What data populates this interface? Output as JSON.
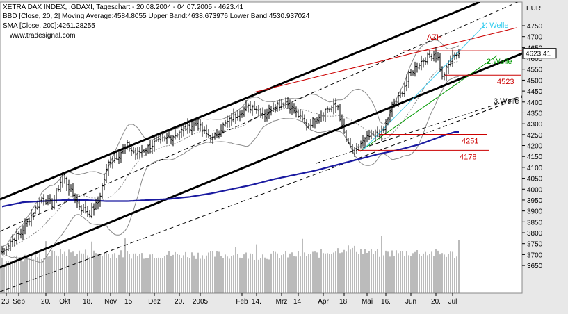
{
  "chart_data": {
    "type": "line",
    "legend": [
      {
        "text": "XETRA DAX INDEX, .GDAXI, Tageschart - 20.08.2004 - 04.07.2005 - 4623.41",
        "color": "#000000"
      },
      {
        "text": "BBD [Close, 20, 2] Moving Average:4584.8055 Upper Band:4638.673976 Lower Band:4530.937024",
        "color": "#555555"
      },
      {
        "text": "SMA [Close, 200]:4261.28255",
        "color": "#1a1aa0"
      }
    ],
    "watermark": "www.tradesignal.com",
    "currency": "EUR",
    "last_price": "4623.41",
    "ylim": [
      3600,
      4850
    ],
    "yticks": [
      3650,
      3700,
      3750,
      3800,
      3850,
      3900,
      3950,
      4000,
      4050,
      4100,
      4150,
      4200,
      4250,
      4300,
      4350,
      4400,
      4450,
      4500,
      4550,
      4600,
      4650,
      4700,
      4750
    ],
    "xticks": [
      {
        "label": "23.",
        "i": 2
      },
      {
        "label": "Sep",
        "i": 8
      },
      {
        "label": "20.",
        "i": 21
      },
      {
        "label": "Okt",
        "i": 30
      },
      {
        "label": "18.",
        "i": 41
      },
      {
        "label": "Nov",
        "i": 52
      },
      {
        "label": "15.",
        "i": 61
      },
      {
        "label": "Dez",
        "i": 73
      },
      {
        "label": "20.",
        "i": 85
      },
      {
        "label": "2005",
        "i": 95
      },
      {
        "label": "Feb",
        "i": 115
      },
      {
        "label": "14.",
        "i": 122
      },
      {
        "label": "Mrz",
        "i": 134
      },
      {
        "label": "14.",
        "i": 142
      },
      {
        "label": "Apr",
        "i": 154
      },
      {
        "label": "18.",
        "i": 164
      },
      {
        "label": "Mai",
        "i": 175
      },
      {
        "label": "16.",
        "i": 184
      },
      {
        "label": "Jun",
        "i": 196
      },
      {
        "label": "20.",
        "i": 208
      },
      {
        "label": "Jul",
        "i": 216
      }
    ],
    "n_bars": 220,
    "close_keypoints": [
      [
        0,
        3710
      ],
      [
        4,
        3760
      ],
      [
        9,
        3800
      ],
      [
        14,
        3880
      ],
      [
        19,
        3960
      ],
      [
        24,
        3930
      ],
      [
        29,
        4060
      ],
      [
        33,
        3990
      ],
      [
        38,
        3910
      ],
      [
        42,
        3890
      ],
      [
        46,
        3940
      ],
      [
        51,
        4120
      ],
      [
        55,
        4150
      ],
      [
        60,
        4200
      ],
      [
        64,
        4160
      ],
      [
        68,
        4180
      ],
      [
        73,
        4210
      ],
      [
        78,
        4230
      ],
      [
        83,
        4250
      ],
      [
        88,
        4280
      ],
      [
        93,
        4300
      ],
      [
        97,
        4260
      ],
      [
        101,
        4230
      ],
      [
        106,
        4290
      ],
      [
        111,
        4330
      ],
      [
        116,
        4370
      ],
      [
        121,
        4380
      ],
      [
        126,
        4340
      ],
      [
        131,
        4390
      ],
      [
        136,
        4400
      ],
      [
        141,
        4350
      ],
      [
        146,
        4290
      ],
      [
        151,
        4330
      ],
      [
        156,
        4370
      ],
      [
        161,
        4380
      ],
      [
        163,
        4280
      ],
      [
        166,
        4200
      ],
      [
        169,
        4170
      ],
      [
        172,
        4210
      ],
      [
        176,
        4240
      ],
      [
        180,
        4250
      ],
      [
        183,
        4270
      ],
      [
        187,
        4380
      ],
      [
        191,
        4430
      ],
      [
        195,
        4520
      ],
      [
        199,
        4570
      ],
      [
        203,
        4600
      ],
      [
        207,
        4620
      ],
      [
        209,
        4600
      ],
      [
        211,
        4510
      ],
      [
        214,
        4570
      ],
      [
        217,
        4623
      ]
    ],
    "sma200_keypoints": [
      [
        0,
        3920
      ],
      [
        10,
        3940
      ],
      [
        20,
        3945
      ],
      [
        30,
        3950
      ],
      [
        40,
        3950
      ],
      [
        50,
        3945
      ],
      [
        60,
        3945
      ],
      [
        70,
        3950
      ],
      [
        80,
        3955
      ],
      [
        90,
        3965
      ],
      [
        100,
        3980
      ],
      [
        110,
        4000
      ],
      [
        120,
        4020
      ],
      [
        130,
        4045
      ],
      [
        140,
        4065
      ],
      [
        150,
        4085
      ],
      [
        160,
        4110
      ],
      [
        170,
        4135
      ],
      [
        180,
        4160
      ],
      [
        190,
        4180
      ],
      [
        200,
        4205
      ],
      [
        210,
        4240
      ],
      [
        217,
        4262
      ]
    ],
    "volume_keypoints": [
      [
        0,
        3670
      ],
      [
        30,
        3710
      ],
      [
        60,
        3700
      ],
      [
        90,
        3700
      ],
      [
        120,
        3695
      ],
      [
        150,
        3700
      ],
      [
        165,
        3730
      ],
      [
        180,
        3705
      ],
      [
        200,
        3710
      ],
      [
        217,
        3700
      ]
    ],
    "levels": [
      {
        "label": "4523",
        "value": 4523,
        "color": "#cc0000"
      },
      {
        "label": "4251",
        "value": 4251,
        "color": "#cc0000"
      },
      {
        "label": "4178",
        "value": 4178,
        "color": "#cc0000"
      }
    ],
    "annotations": [
      {
        "text": "AZH",
        "color": "#cc0000"
      },
      {
        "text": "1. Welle",
        "color": "#33ccee"
      },
      {
        "text": "2.Welle",
        "color": "#009900"
      },
      {
        "text": "3.Welle",
        "color": "#000000"
      }
    ]
  }
}
